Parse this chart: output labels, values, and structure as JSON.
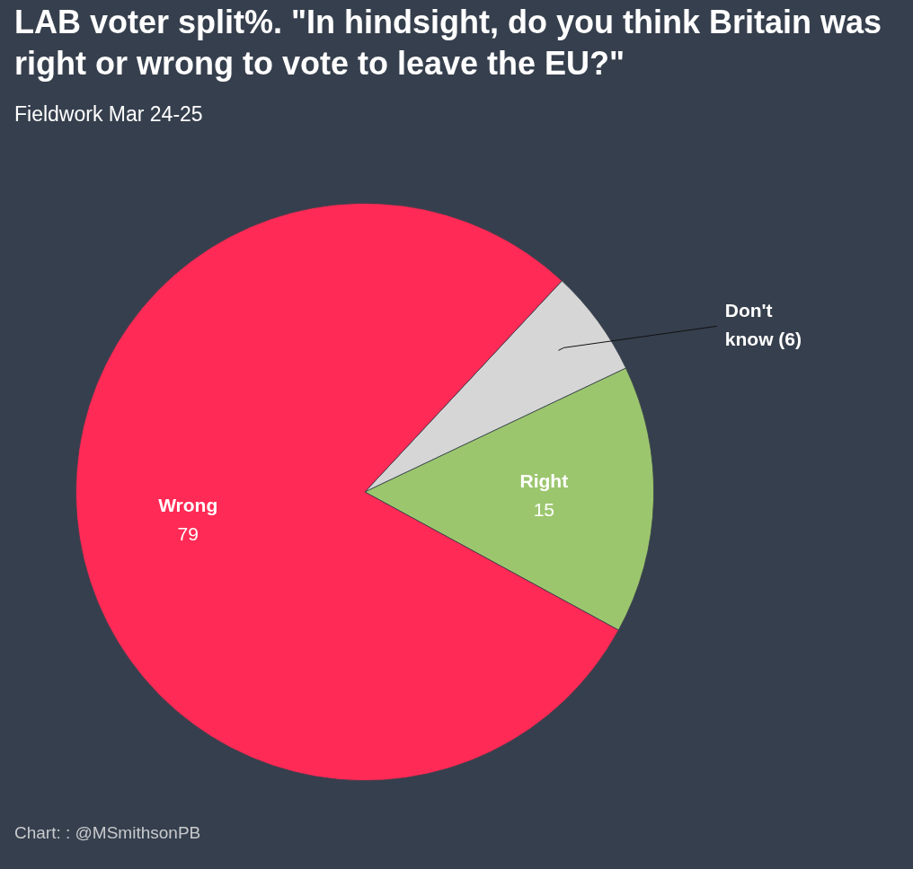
{
  "chart_data": {
    "type": "pie",
    "title": "LAB voter split%. \"In hindsight, do you think Britain was right or wrong to vote to leave the EU?\"",
    "subtitle": "Fieldwork Mar 24-25",
    "categories": [
      "Don't know",
      "Right",
      "Wrong"
    ],
    "values": [
      6,
      15,
      79
    ],
    "colors": [
      "#d6d6d6",
      "#9cc66e",
      "#ff2a55"
    ],
    "value_labels": [
      "(6)",
      "15",
      "79"
    ],
    "legend": false,
    "annotations": [
      "Chart: : @MSmithsonPB"
    ]
  }
}
